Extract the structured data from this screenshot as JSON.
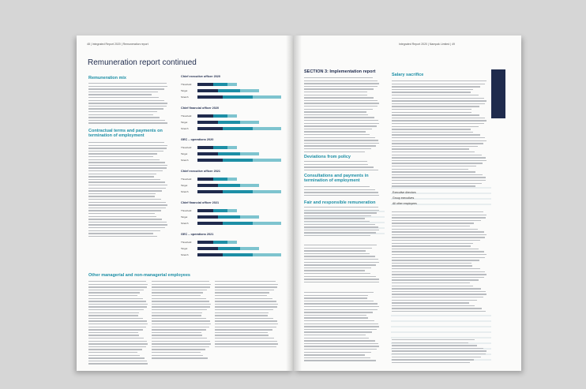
{
  "left_page": {
    "running_head": "48 | Integrated Report 2020 | Remuneration report",
    "title": "Remuneration report continued",
    "sections": [
      "Remuneration mix",
      "Contractual terms and payments on termination of employment",
      "Other managerial and non-managerial employees"
    ],
    "charts": [
      "Chief executive officer 2020",
      "Chief financial officer 2020",
      "GEC – operations 2020",
      "Chief executive officer 2021",
      "Chief financial officer 2021",
      "GEC – operations 2021"
    ],
    "chart_rows": [
      "Threshold",
      "Target",
      "Stretch"
    ]
  },
  "right_page": {
    "running_head": "Integrated Report 2020 | Nampak Limited | 49",
    "sections": [
      "SECTION 3: Implementation report",
      "Deviations from policy",
      "Consultations and payments in termination of employment",
      "Fair and responsible remuneration",
      "Salary sacrifice"
    ],
    "table_rows": [
      "Executive directors",
      "Group executives",
      "All other employees"
    ]
  }
}
